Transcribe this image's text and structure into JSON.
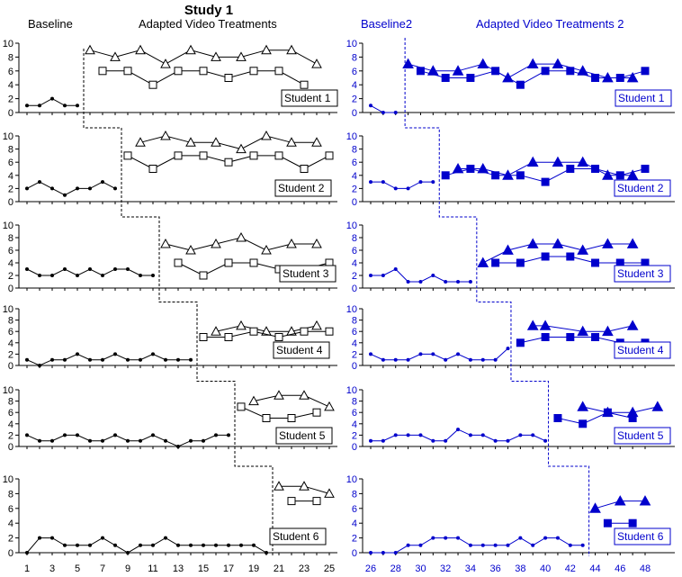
{
  "title": "Study 1",
  "colors": {
    "left": "#000000",
    "right": "#0000cc",
    "background": "#ffffff"
  },
  "left": {
    "phase_labels": [
      "Baseline",
      "Adapted Video Treatments"
    ],
    "x_ticks": [
      1,
      3,
      5,
      7,
      9,
      11,
      13,
      15,
      17,
      19,
      21,
      23,
      25
    ],
    "xlim": [
      1,
      25
    ]
  },
  "right": {
    "phase_labels": [
      "Baseline2",
      "Adapted Video Treatments 2"
    ],
    "x_ticks": [
      26,
      28,
      30,
      32,
      34,
      36,
      38,
      40,
      42,
      44,
      46,
      48
    ],
    "xlim": [
      26,
      48.5
    ]
  },
  "y_ticks": [
    0,
    2,
    4,
    6,
    8,
    10
  ],
  "ylim": [
    0,
    10
  ],
  "chart_data": [
    {
      "type": "line",
      "panel": "left",
      "student": "Student 1",
      "phase_change_x": 5.5,
      "series": [
        {
          "name": "baseline",
          "marker": "dot",
          "x": [
            1,
            2,
            3,
            4,
            5
          ],
          "values": [
            1,
            1,
            2,
            1,
            1
          ]
        },
        {
          "name": "treatment-triangle",
          "marker": "triangle-open",
          "x": [
            6,
            8,
            10,
            12,
            14,
            16,
            18,
            20,
            22,
            24
          ],
          "values": [
            9,
            8,
            9,
            7,
            9,
            8,
            8,
            9,
            9,
            7
          ]
        },
        {
          "name": "treatment-square",
          "marker": "square-open",
          "x": [
            7,
            9,
            11,
            13,
            15,
            17,
            19,
            21,
            23
          ],
          "values": [
            6,
            6,
            4,
            6,
            6,
            5,
            6,
            6,
            4
          ]
        }
      ]
    },
    {
      "type": "line",
      "panel": "left",
      "student": "Student 2",
      "phase_change_x": 8.5,
      "series": [
        {
          "name": "baseline",
          "marker": "dot",
          "x": [
            1,
            2,
            3,
            4,
            5,
            6,
            7,
            8
          ],
          "values": [
            2,
            3,
            2,
            1,
            2,
            2,
            3,
            2
          ]
        },
        {
          "name": "treatment-triangle",
          "marker": "triangle-open",
          "x": [
            10,
            12,
            14,
            16,
            18,
            20,
            22,
            24
          ],
          "values": [
            9,
            10,
            9,
            9,
            8,
            10,
            9,
            9
          ]
        },
        {
          "name": "treatment-square",
          "marker": "square-open",
          "x": [
            9,
            11,
            13,
            15,
            17,
            19,
            21,
            23,
            25
          ],
          "values": [
            7,
            5,
            7,
            7,
            6,
            7,
            7,
            5,
            7
          ]
        }
      ]
    },
    {
      "type": "line",
      "panel": "left",
      "student": "Student 3",
      "phase_change_x": 11.5,
      "series": [
        {
          "name": "baseline",
          "marker": "dot",
          "x": [
            1,
            2,
            3,
            4,
            5,
            6,
            7,
            8,
            9,
            10,
            11
          ],
          "values": [
            3,
            2,
            2,
            3,
            2,
            3,
            2,
            3,
            3,
            2,
            2
          ]
        },
        {
          "name": "treatment-triangle",
          "marker": "triangle-open",
          "x": [
            12,
            14,
            16,
            18,
            20,
            22,
            24
          ],
          "values": [
            7,
            6,
            7,
            8,
            6,
            7,
            7
          ]
        },
        {
          "name": "treatment-square",
          "marker": "square-open",
          "x": [
            13,
            15,
            17,
            19,
            21,
            23,
            25
          ],
          "values": [
            4,
            2,
            4,
            4,
            3,
            3,
            4
          ]
        }
      ]
    },
    {
      "type": "line",
      "panel": "left",
      "student": "Student 4",
      "phase_change_x": 14.5,
      "series": [
        {
          "name": "baseline",
          "marker": "dot",
          "x": [
            1,
            2,
            3,
            4,
            5,
            6,
            7,
            8,
            9,
            10,
            11,
            12,
            13,
            14
          ],
          "values": [
            1,
            0,
            1,
            1,
            2,
            1,
            1,
            2,
            1,
            1,
            2,
            1,
            1,
            1
          ]
        },
        {
          "name": "treatment-triangle",
          "marker": "triangle-open",
          "x": [
            16,
            18,
            20,
            22,
            24
          ],
          "values": [
            6,
            7,
            6,
            6,
            7
          ]
        },
        {
          "name": "treatment-square",
          "marker": "square-open",
          "x": [
            15,
            17,
            19,
            21,
            23,
            25
          ],
          "values": [
            5,
            5,
            6,
            5,
            6,
            6
          ]
        }
      ]
    },
    {
      "type": "line",
      "panel": "left",
      "student": "Student 5",
      "phase_change_x": 17.5,
      "series": [
        {
          "name": "baseline",
          "marker": "dot",
          "x": [
            1,
            2,
            3,
            4,
            5,
            6,
            7,
            8,
            9,
            10,
            11,
            12,
            13,
            14,
            15,
            16,
            17
          ],
          "values": [
            2,
            1,
            1,
            2,
            2,
            1,
            1,
            2,
            1,
            1,
            2,
            1,
            0,
            1,
            1,
            2,
            2
          ]
        },
        {
          "name": "treatment-triangle",
          "marker": "triangle-open",
          "x": [
            19,
            21,
            23,
            25
          ],
          "values": [
            8,
            9,
            9,
            7
          ]
        },
        {
          "name": "treatment-square",
          "marker": "square-open",
          "x": [
            18,
            20,
            22,
            24
          ],
          "values": [
            7,
            5,
            5,
            6
          ]
        }
      ]
    },
    {
      "type": "line",
      "panel": "left",
      "student": "Student 6",
      "phase_change_x": 20.5,
      "series": [
        {
          "name": "baseline",
          "marker": "dot",
          "x": [
            1,
            2,
            3,
            4,
            5,
            6,
            7,
            8,
            9,
            10,
            11,
            12,
            13,
            14,
            15,
            16,
            17,
            18,
            19,
            20
          ],
          "values": [
            0,
            2,
            2,
            1,
            1,
            1,
            2,
            1,
            0,
            1,
            1,
            2,
            1,
            1,
            1,
            1,
            1,
            1,
            1,
            0
          ]
        },
        {
          "name": "treatment-triangle",
          "marker": "triangle-open",
          "x": [
            21,
            23,
            25
          ],
          "values": [
            9,
            9,
            8
          ]
        },
        {
          "name": "treatment-square",
          "marker": "square-open",
          "x": [
            22,
            24
          ],
          "values": [
            7,
            7
          ]
        }
      ]
    },
    {
      "type": "line",
      "panel": "right",
      "student": "Student 1",
      "phase_change_x": 28.75,
      "series": [
        {
          "name": "baseline",
          "marker": "dot",
          "x": [
            26,
            27,
            28
          ],
          "values": [
            1,
            0,
            0
          ]
        },
        {
          "name": "treatment-triangle",
          "marker": "triangle-filled",
          "x": [
            29,
            31,
            33,
            35,
            37,
            39,
            41,
            43,
            45,
            47
          ],
          "values": [
            7,
            6,
            6,
            7,
            5,
            7,
            7,
            6,
            5,
            5
          ]
        },
        {
          "name": "treatment-square",
          "marker": "square-filled",
          "x": [
            30,
            32,
            34,
            36,
            38,
            40,
            42,
            44,
            46,
            48
          ],
          "values": [
            6,
            5,
            5,
            6,
            4,
            6,
            6,
            5,
            5,
            6
          ]
        }
      ]
    },
    {
      "type": "line",
      "panel": "right",
      "student": "Student 2",
      "phase_change_x": 31.5,
      "series": [
        {
          "name": "baseline",
          "marker": "dot",
          "x": [
            26,
            27,
            28,
            29,
            30,
            31
          ],
          "values": [
            3,
            3,
            2,
            2,
            3,
            3
          ]
        },
        {
          "name": "treatment-triangle",
          "marker": "triangle-filled",
          "x": [
            33,
            35,
            37,
            39,
            41,
            43,
            45,
            47
          ],
          "values": [
            5,
            5,
            4,
            6,
            6,
            6,
            4,
            4
          ]
        },
        {
          "name": "treatment-square",
          "marker": "square-filled",
          "x": [
            32,
            34,
            36,
            38,
            40,
            42,
            44,
            46,
            48
          ],
          "values": [
            4,
            5,
            4,
            4,
            3,
            5,
            5,
            4,
            5
          ]
        }
      ]
    },
    {
      "type": "line",
      "panel": "right",
      "student": "Student 3",
      "phase_change_x": 34.5,
      "series": [
        {
          "name": "baseline",
          "marker": "dot",
          "x": [
            26,
            27,
            28,
            29,
            30,
            31,
            32,
            33,
            34
          ],
          "values": [
            2,
            2,
            3,
            1,
            1,
            2,
            1,
            1,
            1
          ]
        },
        {
          "name": "treatment-triangle",
          "marker": "triangle-filled",
          "x": [
            35,
            37,
            39,
            41,
            43,
            45,
            47
          ],
          "values": [
            4,
            6,
            7,
            7,
            6,
            7,
            7
          ]
        },
        {
          "name": "treatment-square",
          "marker": "square-filled",
          "x": [
            36,
            38,
            40,
            42,
            44,
            46,
            48
          ],
          "values": [
            4,
            4,
            5,
            5,
            4,
            4,
            4
          ]
        }
      ]
    },
    {
      "type": "line",
      "panel": "right",
      "student": "Student 4",
      "phase_change_x": 37.25,
      "series": [
        {
          "name": "baseline",
          "marker": "dot",
          "x": [
            26,
            27,
            28,
            29,
            30,
            31,
            32,
            33,
            34,
            35,
            36,
            37
          ],
          "values": [
            2,
            1,
            1,
            1,
            2,
            2,
            1,
            2,
            1,
            1,
            1,
            3
          ]
        },
        {
          "name": "treatment-triangle",
          "marker": "triangle-filled",
          "x": [
            39,
            40,
            43,
            45,
            47
          ],
          "values": [
            7,
            7,
            6,
            6,
            7
          ]
        },
        {
          "name": "treatment-square",
          "marker": "square-filled",
          "x": [
            38,
            40,
            42,
            44,
            46,
            48
          ],
          "values": [
            4,
            5,
            5,
            5,
            4,
            4
          ]
        }
      ]
    },
    {
      "type": "line",
      "panel": "right",
      "student": "Student 5",
      "phase_change_x": 40.25,
      "series": [
        {
          "name": "baseline",
          "marker": "dot",
          "x": [
            26,
            27,
            28,
            29,
            30,
            31,
            32,
            33,
            34,
            35,
            36,
            37,
            38,
            39,
            40
          ],
          "values": [
            1,
            1,
            2,
            2,
            2,
            1,
            1,
            3,
            2,
            2,
            1,
            1,
            2,
            2,
            1
          ]
        },
        {
          "name": "treatment-triangle",
          "marker": "triangle-filled",
          "x": [
            43,
            45,
            47,
            49
          ],
          "values": [
            7,
            6,
            6,
            7
          ]
        },
        {
          "name": "treatment-square",
          "marker": "square-filled",
          "x": [
            41,
            43,
            45,
            47
          ],
          "values": [
            5,
            4,
            6,
            5
          ]
        }
      ]
    },
    {
      "type": "line",
      "panel": "right",
      "student": "Student 6",
      "phase_change_x": 43.5,
      "series": [
        {
          "name": "baseline",
          "marker": "dot",
          "x": [
            26,
            27,
            28,
            29,
            30,
            31,
            32,
            33,
            34,
            35,
            36,
            37,
            38,
            39,
            40,
            41,
            42,
            43
          ],
          "values": [
            0,
            0,
            0,
            1,
            1,
            2,
            2,
            2,
            1,
            1,
            1,
            1,
            2,
            1,
            2,
            2,
            1,
            1
          ]
        },
        {
          "name": "treatment-triangle",
          "marker": "triangle-filled",
          "x": [
            44,
            46,
            48
          ],
          "values": [
            6,
            7,
            7
          ]
        },
        {
          "name": "treatment-square",
          "marker": "square-filled",
          "x": [
            45,
            47
          ],
          "values": [
            4,
            4
          ]
        }
      ]
    }
  ]
}
